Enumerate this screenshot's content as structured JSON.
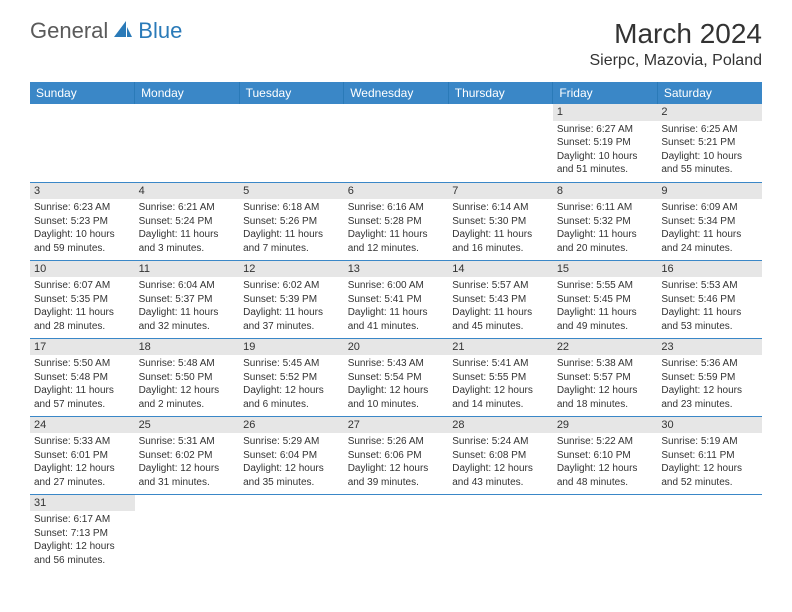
{
  "brand": {
    "general": "General",
    "blue": "Blue"
  },
  "header": {
    "title": "March 2024",
    "location": "Sierpc, Mazovia, Poland"
  },
  "styling": {
    "header_bg": "#3a87c7",
    "header_text": "#ffffff",
    "daynum_bg": "#e6e6e6",
    "cell_border": "#3a87c7",
    "body_text": "#333333",
    "logo_gray": "#5a5a5a",
    "logo_blue": "#2a7ab8",
    "month_fontsize": 28,
    "location_fontsize": 16,
    "dayhead_fontsize": 12,
    "cell_fontsize": 10
  },
  "calendar": {
    "dayHeaders": [
      "Sunday",
      "Monday",
      "Tuesday",
      "Wednesday",
      "Thursday",
      "Friday",
      "Saturday"
    ],
    "weeks": [
      [
        {
          "n": "",
          "empty": true
        },
        {
          "n": "",
          "empty": true
        },
        {
          "n": "",
          "empty": true
        },
        {
          "n": "",
          "empty": true
        },
        {
          "n": "",
          "empty": true
        },
        {
          "n": "1",
          "sunrise": "Sunrise: 6:27 AM",
          "sunset": "Sunset: 5:19 PM",
          "daylight1": "Daylight: 10 hours",
          "daylight2": "and 51 minutes."
        },
        {
          "n": "2",
          "sunrise": "Sunrise: 6:25 AM",
          "sunset": "Sunset: 5:21 PM",
          "daylight1": "Daylight: 10 hours",
          "daylight2": "and 55 minutes."
        }
      ],
      [
        {
          "n": "3",
          "sunrise": "Sunrise: 6:23 AM",
          "sunset": "Sunset: 5:23 PM",
          "daylight1": "Daylight: 10 hours",
          "daylight2": "and 59 minutes."
        },
        {
          "n": "4",
          "sunrise": "Sunrise: 6:21 AM",
          "sunset": "Sunset: 5:24 PM",
          "daylight1": "Daylight: 11 hours",
          "daylight2": "and 3 minutes."
        },
        {
          "n": "5",
          "sunrise": "Sunrise: 6:18 AM",
          "sunset": "Sunset: 5:26 PM",
          "daylight1": "Daylight: 11 hours",
          "daylight2": "and 7 minutes."
        },
        {
          "n": "6",
          "sunrise": "Sunrise: 6:16 AM",
          "sunset": "Sunset: 5:28 PM",
          "daylight1": "Daylight: 11 hours",
          "daylight2": "and 12 minutes."
        },
        {
          "n": "7",
          "sunrise": "Sunrise: 6:14 AM",
          "sunset": "Sunset: 5:30 PM",
          "daylight1": "Daylight: 11 hours",
          "daylight2": "and 16 minutes."
        },
        {
          "n": "8",
          "sunrise": "Sunrise: 6:11 AM",
          "sunset": "Sunset: 5:32 PM",
          "daylight1": "Daylight: 11 hours",
          "daylight2": "and 20 minutes."
        },
        {
          "n": "9",
          "sunrise": "Sunrise: 6:09 AM",
          "sunset": "Sunset: 5:34 PM",
          "daylight1": "Daylight: 11 hours",
          "daylight2": "and 24 minutes."
        }
      ],
      [
        {
          "n": "10",
          "sunrise": "Sunrise: 6:07 AM",
          "sunset": "Sunset: 5:35 PM",
          "daylight1": "Daylight: 11 hours",
          "daylight2": "and 28 minutes."
        },
        {
          "n": "11",
          "sunrise": "Sunrise: 6:04 AM",
          "sunset": "Sunset: 5:37 PM",
          "daylight1": "Daylight: 11 hours",
          "daylight2": "and 32 minutes."
        },
        {
          "n": "12",
          "sunrise": "Sunrise: 6:02 AM",
          "sunset": "Sunset: 5:39 PM",
          "daylight1": "Daylight: 11 hours",
          "daylight2": "and 37 minutes."
        },
        {
          "n": "13",
          "sunrise": "Sunrise: 6:00 AM",
          "sunset": "Sunset: 5:41 PM",
          "daylight1": "Daylight: 11 hours",
          "daylight2": "and 41 minutes."
        },
        {
          "n": "14",
          "sunrise": "Sunrise: 5:57 AM",
          "sunset": "Sunset: 5:43 PM",
          "daylight1": "Daylight: 11 hours",
          "daylight2": "and 45 minutes."
        },
        {
          "n": "15",
          "sunrise": "Sunrise: 5:55 AM",
          "sunset": "Sunset: 5:45 PM",
          "daylight1": "Daylight: 11 hours",
          "daylight2": "and 49 minutes."
        },
        {
          "n": "16",
          "sunrise": "Sunrise: 5:53 AM",
          "sunset": "Sunset: 5:46 PM",
          "daylight1": "Daylight: 11 hours",
          "daylight2": "and 53 minutes."
        }
      ],
      [
        {
          "n": "17",
          "sunrise": "Sunrise: 5:50 AM",
          "sunset": "Sunset: 5:48 PM",
          "daylight1": "Daylight: 11 hours",
          "daylight2": "and 57 minutes."
        },
        {
          "n": "18",
          "sunrise": "Sunrise: 5:48 AM",
          "sunset": "Sunset: 5:50 PM",
          "daylight1": "Daylight: 12 hours",
          "daylight2": "and 2 minutes."
        },
        {
          "n": "19",
          "sunrise": "Sunrise: 5:45 AM",
          "sunset": "Sunset: 5:52 PM",
          "daylight1": "Daylight: 12 hours",
          "daylight2": "and 6 minutes."
        },
        {
          "n": "20",
          "sunrise": "Sunrise: 5:43 AM",
          "sunset": "Sunset: 5:54 PM",
          "daylight1": "Daylight: 12 hours",
          "daylight2": "and 10 minutes."
        },
        {
          "n": "21",
          "sunrise": "Sunrise: 5:41 AM",
          "sunset": "Sunset: 5:55 PM",
          "daylight1": "Daylight: 12 hours",
          "daylight2": "and 14 minutes."
        },
        {
          "n": "22",
          "sunrise": "Sunrise: 5:38 AM",
          "sunset": "Sunset: 5:57 PM",
          "daylight1": "Daylight: 12 hours",
          "daylight2": "and 18 minutes."
        },
        {
          "n": "23",
          "sunrise": "Sunrise: 5:36 AM",
          "sunset": "Sunset: 5:59 PM",
          "daylight1": "Daylight: 12 hours",
          "daylight2": "and 23 minutes."
        }
      ],
      [
        {
          "n": "24",
          "sunrise": "Sunrise: 5:33 AM",
          "sunset": "Sunset: 6:01 PM",
          "daylight1": "Daylight: 12 hours",
          "daylight2": "and 27 minutes."
        },
        {
          "n": "25",
          "sunrise": "Sunrise: 5:31 AM",
          "sunset": "Sunset: 6:02 PM",
          "daylight1": "Daylight: 12 hours",
          "daylight2": "and 31 minutes."
        },
        {
          "n": "26",
          "sunrise": "Sunrise: 5:29 AM",
          "sunset": "Sunset: 6:04 PM",
          "daylight1": "Daylight: 12 hours",
          "daylight2": "and 35 minutes."
        },
        {
          "n": "27",
          "sunrise": "Sunrise: 5:26 AM",
          "sunset": "Sunset: 6:06 PM",
          "daylight1": "Daylight: 12 hours",
          "daylight2": "and 39 minutes."
        },
        {
          "n": "28",
          "sunrise": "Sunrise: 5:24 AM",
          "sunset": "Sunset: 6:08 PM",
          "daylight1": "Daylight: 12 hours",
          "daylight2": "and 43 minutes."
        },
        {
          "n": "29",
          "sunrise": "Sunrise: 5:22 AM",
          "sunset": "Sunset: 6:10 PM",
          "daylight1": "Daylight: 12 hours",
          "daylight2": "and 48 minutes."
        },
        {
          "n": "30",
          "sunrise": "Sunrise: 5:19 AM",
          "sunset": "Sunset: 6:11 PM",
          "daylight1": "Daylight: 12 hours",
          "daylight2": "and 52 minutes."
        }
      ],
      [
        {
          "n": "31",
          "sunrise": "Sunrise: 6:17 AM",
          "sunset": "Sunset: 7:13 PM",
          "daylight1": "Daylight: 12 hours",
          "daylight2": "and 56 minutes."
        },
        {
          "n": "",
          "empty": true
        },
        {
          "n": "",
          "empty": true
        },
        {
          "n": "",
          "empty": true
        },
        {
          "n": "",
          "empty": true
        },
        {
          "n": "",
          "empty": true
        },
        {
          "n": "",
          "empty": true
        }
      ]
    ]
  }
}
